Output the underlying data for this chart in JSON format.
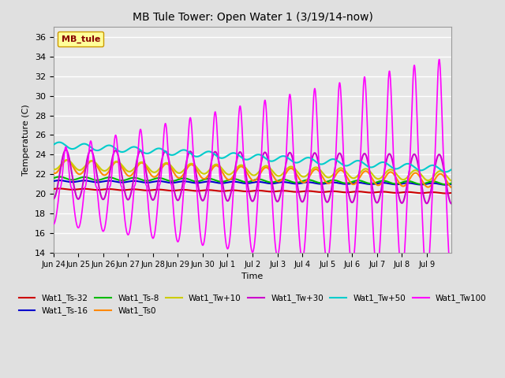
{
  "title": "MB Tule Tower: Open Water 1 (3/19/14-now)",
  "xlabel": "Time",
  "ylabel": "Temperature (C)",
  "ylim": [
    14,
    37
  ],
  "yticks": [
    14,
    16,
    18,
    20,
    22,
    24,
    26,
    28,
    30,
    32,
    34,
    36
  ],
  "background_color": "#e0e0e0",
  "plot_bg_color": "#e8e8e8",
  "grid_color": "#ffffff",
  "legend_label": "MB_tule",
  "legend_box_color": "#ffff99",
  "legend_box_edge": "#cc9900",
  "series": {
    "Wat1_Ts-32": {
      "color": "#cc0000",
      "lw": 1.5
    },
    "Wat1_Ts-16": {
      "color": "#0000cc",
      "lw": 1.5
    },
    "Wat1_Ts-8": {
      "color": "#00bb00",
      "lw": 1.5
    },
    "Wat1_Ts0": {
      "color": "#ff8800",
      "lw": 1.5
    },
    "Wat1_Tw+10": {
      "color": "#cccc00",
      "lw": 1.5
    },
    "Wat1_Tw+30": {
      "color": "#cc00cc",
      "lw": 1.5
    },
    "Wat1_Tw+50": {
      "color": "#00cccc",
      "lw": 1.5
    },
    "Wat1_Tw100": {
      "color": "#ff00ff",
      "lw": 1.2
    }
  },
  "xtick_labels": [
    "Jun 24",
    "Jun 25",
    "Jun 26",
    "Jun 27",
    "Jun 28",
    "Jun 29",
    "Jun 30",
    "Jul 1",
    "Jul 2",
    "Jul 3",
    "Jul 4",
    "Jul 5",
    "Jul 6",
    "Jul 7",
    "Jul 8",
    "Jul 9"
  ],
  "n_days": 16
}
